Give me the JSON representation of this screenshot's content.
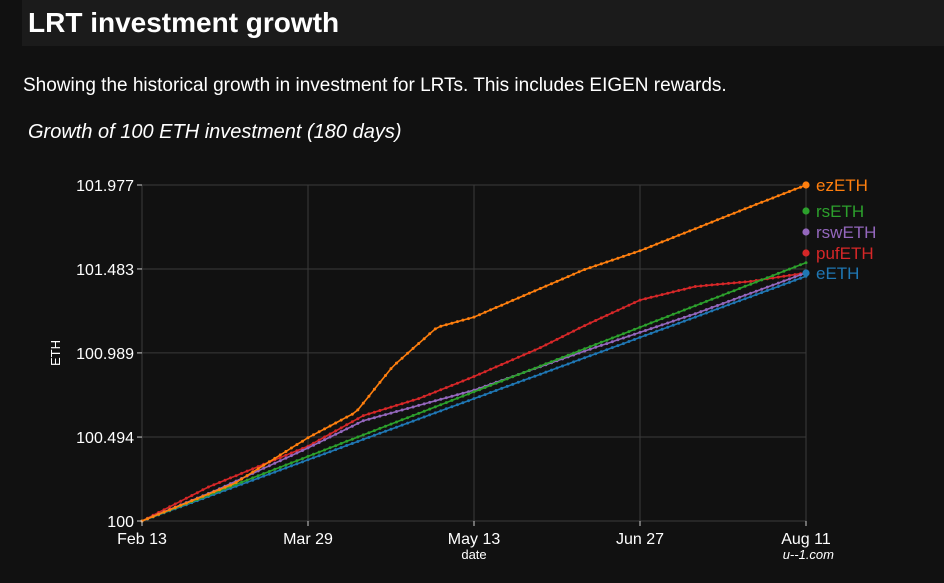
{
  "header": {
    "title": "LRT investment growth"
  },
  "description": "Showing the historical growth in investment for LRTs. This includes EIGEN rewards.",
  "watermark": "u--1.com",
  "chart_data": {
    "type": "line",
    "title": "Growth of 100 ETH investment (180 days)",
    "xlabel": "date",
    "ylabel": "ETH",
    "xlim": [
      0,
      180
    ],
    "ylim": [
      100,
      101.977
    ],
    "x_ticks": [
      {
        "day": 0,
        "label": "Feb 13"
      },
      {
        "day": 45,
        "label": "Mar 29"
      },
      {
        "day": 90,
        "label": "May 13"
      },
      {
        "day": 135,
        "label": "Jun 27"
      },
      {
        "day": 180,
        "label": "Aug 11"
      }
    ],
    "y_ticks": [
      {
        "value": 100,
        "label": "100"
      },
      {
        "value": 100.494,
        "label": "100.494"
      },
      {
        "value": 100.989,
        "label": "100.989"
      },
      {
        "value": 101.483,
        "label": "101.483"
      },
      {
        "value": 101.977,
        "label": "101.977"
      }
    ],
    "grid": true,
    "legend_position": "right-end",
    "series": [
      {
        "name": "eETH",
        "color": "#1f77b4",
        "points": [
          [
            0,
            100
          ],
          [
            180,
            101.44
          ]
        ]
      },
      {
        "name": "pufETH",
        "color": "#d62728",
        "points": [
          [
            0,
            100
          ],
          [
            18,
            100.2
          ],
          [
            45,
            100.44
          ],
          [
            60,
            100.62
          ],
          [
            75,
            100.72
          ],
          [
            90,
            100.85
          ],
          [
            108,
            101.02
          ],
          [
            120,
            101.15
          ],
          [
            135,
            101.3
          ],
          [
            150,
            101.38
          ],
          [
            165,
            101.41
          ],
          [
            180,
            101.46
          ]
        ]
      },
      {
        "name": "rswETH",
        "color": "#9467bd",
        "points": [
          [
            0,
            100
          ],
          [
            20,
            100.18
          ],
          [
            45,
            100.43
          ],
          [
            60,
            100.59
          ],
          [
            75,
            100.68
          ],
          [
            90,
            100.77
          ],
          [
            120,
            101.0
          ],
          [
            150,
            101.22
          ],
          [
            180,
            101.46
          ]
        ]
      },
      {
        "name": "rsETH",
        "color": "#2ca02c",
        "points": [
          [
            0,
            100
          ],
          [
            45,
            100.38
          ],
          [
            90,
            100.76
          ],
          [
            135,
            101.14
          ],
          [
            180,
            101.52
          ]
        ]
      },
      {
        "name": "ezETH",
        "color": "#ff7f0e",
        "points": [
          [
            0,
            100
          ],
          [
            25,
            100.22
          ],
          [
            45,
            100.49
          ],
          [
            58,
            100.64
          ],
          [
            68,
            100.91
          ],
          [
            80,
            101.14
          ],
          [
            90,
            101.2
          ],
          [
            105,
            101.34
          ],
          [
            120,
            101.48
          ],
          [
            135,
            101.59
          ],
          [
            150,
            101.72
          ],
          [
            165,
            101.85
          ],
          [
            180,
            101.977
          ]
        ]
      }
    ]
  }
}
